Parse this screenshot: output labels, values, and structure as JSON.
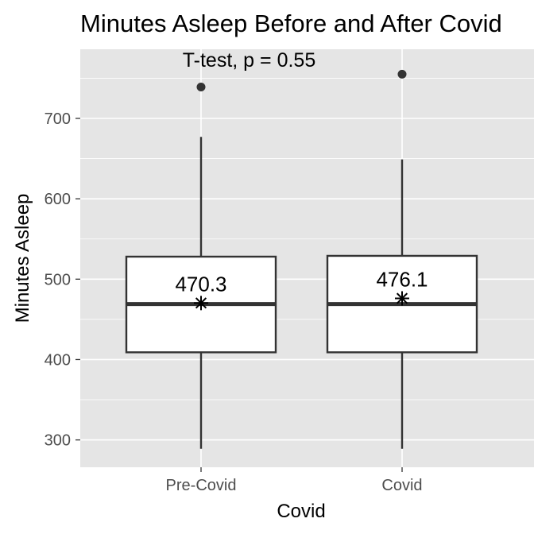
{
  "chart_data": {
    "type": "boxplot",
    "title": "Minutes Asleep Before and After Covid",
    "xlabel": "Covid",
    "ylabel": "Minutes Asleep",
    "categories": [
      "Pre-Covid",
      "Covid"
    ],
    "ylim": [
      266,
      786
    ],
    "y_ticks": [
      300,
      400,
      500,
      600,
      700
    ],
    "grid": true,
    "boxes": [
      {
        "category": "Pre-Covid",
        "whisker_low": 289,
        "q1": 409,
        "median": 469,
        "q3": 528,
        "whisker_high": 677,
        "outliers": [
          739
        ],
        "mean": 470.3,
        "mean_label": "470.3"
      },
      {
        "category": "Covid",
        "whisker_low": 289,
        "q1": 409,
        "median": 469,
        "q3": 529,
        "whisker_high": 649,
        "outliers": [
          755
        ],
        "mean": 476.1,
        "mean_label": "476.1"
      }
    ],
    "annotation": "T-test, p = 0.55"
  }
}
